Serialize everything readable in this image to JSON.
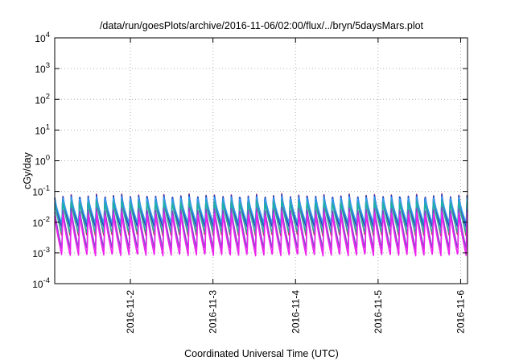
{
  "chart_data": {
    "type": "line",
    "title": "/data/run/goesPlots/archive/2016-11-06/02:00/flux/../bryn/5daysMars.plot",
    "xlabel": "Coordinated Universal Time (UTC)",
    "ylabel": "cGy/day",
    "y_scale": "log",
    "ylim": [
      0.0001,
      10000
    ],
    "xlim": [
      "2016-11-01T02:00",
      "2016-11-06T02:00"
    ],
    "grid": true,
    "x_ticks": [
      "2016-11-2",
      "2016-11-3",
      "2016-11-4",
      "2016-11-5",
      "2016-11-6"
    ],
    "y_ticks": [
      {
        "value": 0.0001,
        "base": "10",
        "exp": "-4"
      },
      {
        "value": 0.001,
        "base": "10",
        "exp": "-3"
      },
      {
        "value": 0.01,
        "base": "10",
        "exp": "-2"
      },
      {
        "value": 0.1,
        "base": "10",
        "exp": "-1"
      },
      {
        "value": 1,
        "base": "10",
        "exp": "0"
      },
      {
        "value": 10,
        "base": "10",
        "exp": "1"
      },
      {
        "value": 100,
        "base": "10",
        "exp": "2"
      },
      {
        "value": 1000,
        "base": "10",
        "exp": "3"
      },
      {
        "value": 10000,
        "base": "10",
        "exp": "4"
      }
    ],
    "sawtooth": {
      "cycles_per_day": 9.8,
      "phase_offset": 0.15,
      "envelope": [
        {
          "color": "#cc2222",
          "peak": 0.085,
          "trough": 0.0035
        },
        {
          "color": "#1f3fd0",
          "peak": 0.08,
          "trough": 0.0065
        },
        {
          "color": "#2f9fe8",
          "peak": 0.068,
          "trough": 0.009
        },
        {
          "color": "#20b0a0",
          "peak": 0.05,
          "trough": 0.0042
        },
        {
          "color": "#8844cc",
          "peak": 0.03,
          "trough": 0.0013
        },
        {
          "color": "#ee22ee",
          "peak": 0.022,
          "trough": 0.0008
        }
      ]
    }
  }
}
